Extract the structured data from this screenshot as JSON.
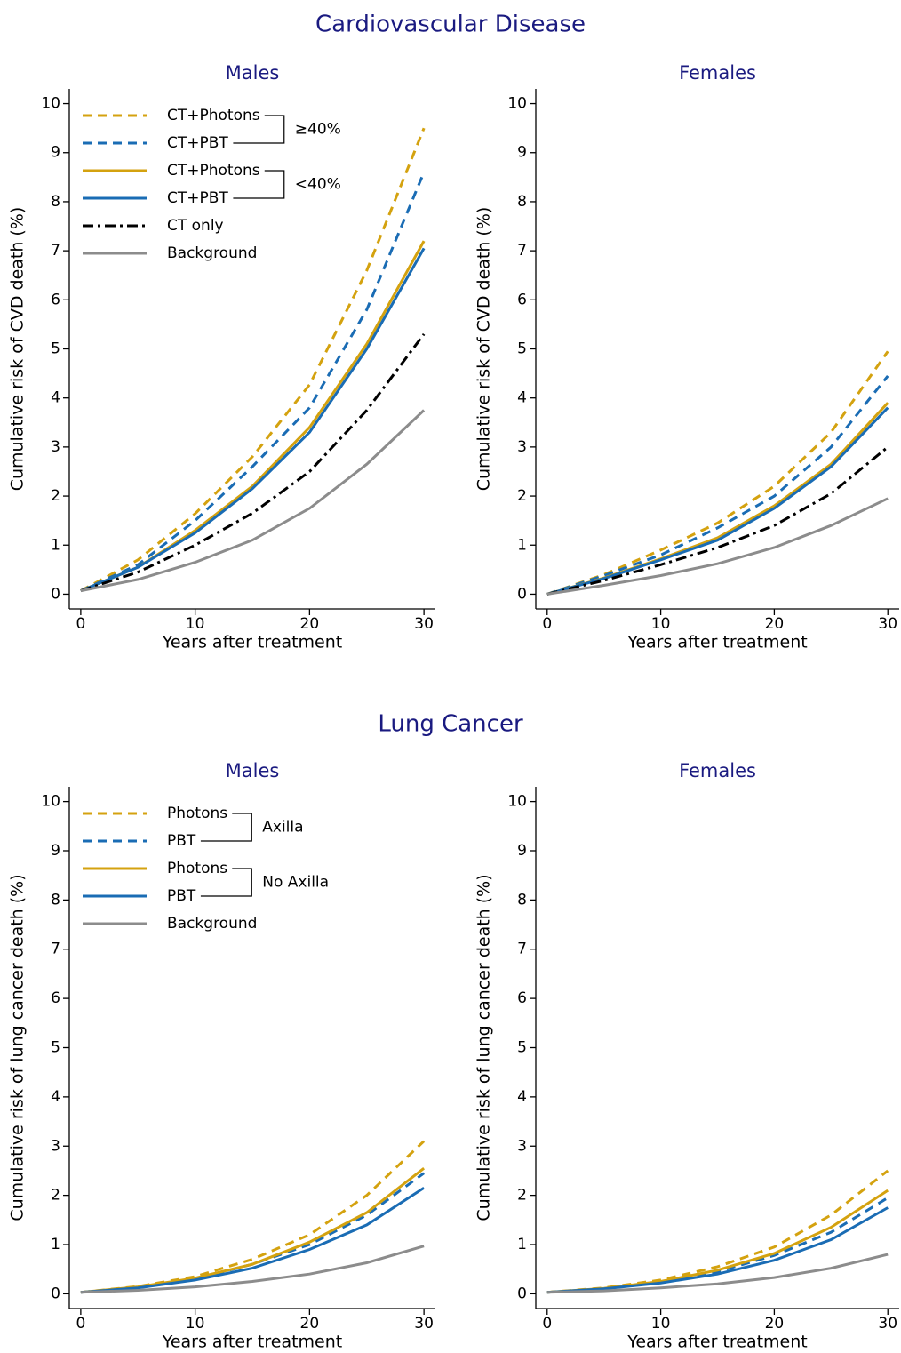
{
  "titles": [
    "Cardiovascular Disease",
    "Lung Cancer"
  ],
  "chart_data": [
    {
      "type": "line",
      "title": "Males",
      "xlabel": "Years after treatment",
      "ylabel": "Cumulative risk of CVD death (%)",
      "xlim": [
        -1,
        31
      ],
      "ylim": [
        -0.3,
        10.3
      ],
      "xticks": [
        0,
        10,
        20,
        30
      ],
      "yticks": [
        0,
        1,
        2,
        3,
        4,
        5,
        6,
        7,
        8,
        9,
        10
      ],
      "legend": "upper left",
      "legend_groups": [
        "≥40%",
        "<40%"
      ],
      "x": [
        0,
        5,
        10,
        15,
        20,
        25,
        30
      ],
      "series": [
        {
          "name": "CT+Photons",
          "color": "#d4a20f",
          "style": "dashed",
          "values": [
            0.07,
            0.7,
            1.64,
            2.8,
            4.27,
            6.6,
            9.5
          ]
        },
        {
          "name": "CT+PBT",
          "color": "#1a6cb4",
          "style": "dashed",
          "values": [
            0.07,
            0.6,
            1.5,
            2.6,
            3.8,
            5.8,
            8.6
          ]
        },
        {
          "name": "CT+Photons",
          "color": "#d4a20f",
          "style": "solid",
          "values": [
            0.07,
            0.55,
            1.3,
            2.2,
            3.4,
            5.1,
            7.2
          ]
        },
        {
          "name": "CT+PBT",
          "color": "#1a6cb4",
          "style": "solid",
          "values": [
            0.07,
            0.55,
            1.25,
            2.15,
            3.3,
            5.0,
            7.05
          ]
        },
        {
          "name": "CT only",
          "color": "#000000",
          "style": "dashdot",
          "values": [
            0.07,
            0.45,
            1.0,
            1.65,
            2.5,
            3.75,
            5.3
          ]
        },
        {
          "name": "Background",
          "color": "#8c8c8c",
          "style": "solid",
          "values": [
            0.07,
            0.3,
            0.65,
            1.1,
            1.75,
            2.65,
            3.75
          ]
        }
      ]
    },
    {
      "type": "line",
      "title": "Females",
      "xlabel": "Years after treatment",
      "ylabel": "Cumulative risk of CVD death (%)",
      "xlim": [
        -1,
        31
      ],
      "ylim": [
        -0.3,
        10.3
      ],
      "xticks": [
        0,
        10,
        20,
        30
      ],
      "yticks": [
        0,
        1,
        2,
        3,
        4,
        5,
        6,
        7,
        8,
        9,
        10
      ],
      "x": [
        0,
        5,
        10,
        15,
        20,
        25,
        30
      ],
      "series": [
        {
          "color": "#d4a20f",
          "style": "dashed",
          "values": [
            0,
            0.4,
            0.9,
            1.45,
            2.2,
            3.3,
            4.95
          ]
        },
        {
          "color": "#1a6cb4",
          "style": "dashed",
          "values": [
            0,
            0.38,
            0.8,
            1.35,
            2.0,
            3.0,
            4.45
          ]
        },
        {
          "color": "#d4a20f",
          "style": "solid",
          "values": [
            0,
            0.33,
            0.72,
            1.15,
            1.8,
            2.65,
            3.9
          ]
        },
        {
          "color": "#1a6cb4",
          "style": "solid",
          "values": [
            0,
            0.32,
            0.7,
            1.1,
            1.75,
            2.6,
            3.8
          ]
        },
        {
          "color": "#000000",
          "style": "dashdot",
          "values": [
            0,
            0.28,
            0.6,
            0.95,
            1.4,
            2.05,
            3.0
          ]
        },
        {
          "color": "#8c8c8c",
          "style": "solid",
          "values": [
            0,
            0.18,
            0.38,
            0.62,
            0.95,
            1.4,
            1.95
          ]
        }
      ]
    },
    {
      "type": "line",
      "title": "Males",
      "xlabel": "Years after treatment",
      "ylabel": "Cumulative risk of lung cancer death (%)",
      "xlim": [
        -1,
        31
      ],
      "ylim": [
        -0.3,
        10.3
      ],
      "xticks": [
        0,
        10,
        20,
        30
      ],
      "yticks": [
        0,
        1,
        2,
        3,
        4,
        5,
        6,
        7,
        8,
        9,
        10
      ],
      "legend": "upper left",
      "legend_groups": [
        "Axilla",
        "No Axilla"
      ],
      "x": [
        0,
        5,
        10,
        15,
        20,
        25,
        30
      ],
      "series": [
        {
          "name": "Photons",
          "color": "#d4a20f",
          "style": "dashed",
          "values": [
            0.03,
            0.15,
            0.35,
            0.7,
            1.2,
            2.0,
            3.1
          ]
        },
        {
          "name": "PBT",
          "color": "#1a6cb4",
          "style": "dashed",
          "values": [
            0.03,
            0.13,
            0.3,
            0.6,
            1.0,
            1.6,
            2.45
          ]
        },
        {
          "name": "Photons",
          "color": "#d4a20f",
          "style": "solid",
          "values": [
            0.03,
            0.14,
            0.32,
            0.6,
            1.05,
            1.65,
            2.55
          ]
        },
        {
          "name": "PBT",
          "color": "#1a6cb4",
          "style": "solid",
          "values": [
            0.03,
            0.12,
            0.28,
            0.52,
            0.9,
            1.4,
            2.15
          ]
        },
        {
          "name": "Background",
          "color": "#8c8c8c",
          "style": "solid",
          "values": [
            0.03,
            0.07,
            0.14,
            0.25,
            0.4,
            0.63,
            0.97
          ]
        }
      ]
    },
    {
      "type": "line",
      "title": "Females",
      "xlabel": "Years after treatment",
      "ylabel": "Cumulative risk of lung cancer death (%)",
      "xlim": [
        -1,
        31
      ],
      "ylim": [
        -0.3,
        10.3
      ],
      "xticks": [
        0,
        10,
        20,
        30
      ],
      "yticks": [
        0,
        1,
        2,
        3,
        4,
        5,
        6,
        7,
        8,
        9,
        10
      ],
      "x": [
        0,
        5,
        10,
        15,
        20,
        25,
        30
      ],
      "series": [
        {
          "color": "#d4a20f",
          "style": "dashed",
          "values": [
            0.03,
            0.12,
            0.28,
            0.55,
            0.95,
            1.6,
            2.5
          ]
        },
        {
          "color": "#1a6cb4",
          "style": "dashed",
          "values": [
            0.03,
            0.1,
            0.24,
            0.45,
            0.78,
            1.25,
            1.95
          ]
        },
        {
          "color": "#d4a20f",
          "style": "solid",
          "values": [
            0.03,
            0.11,
            0.25,
            0.48,
            0.82,
            1.35,
            2.1
          ]
        },
        {
          "color": "#1a6cb4",
          "style": "solid",
          "values": [
            0.03,
            0.1,
            0.22,
            0.4,
            0.68,
            1.1,
            1.75
          ]
        },
        {
          "color": "#8c8c8c",
          "style": "solid",
          "values": [
            0.03,
            0.06,
            0.12,
            0.2,
            0.33,
            0.52,
            0.8
          ]
        }
      ]
    }
  ]
}
